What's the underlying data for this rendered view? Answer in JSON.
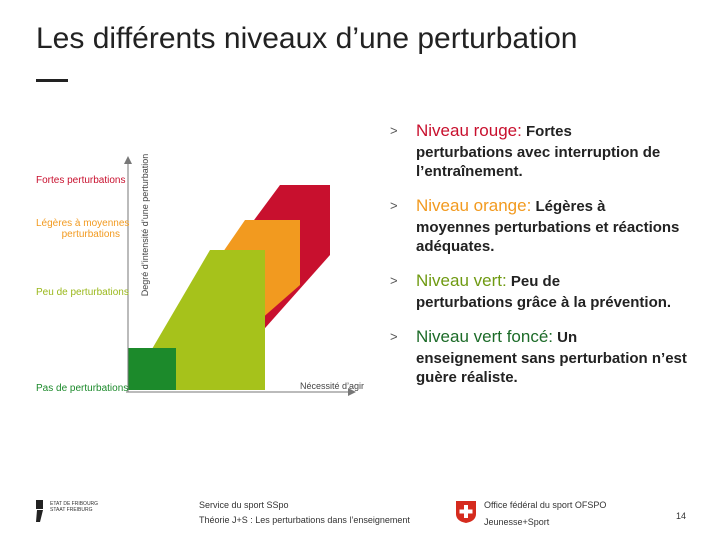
{
  "slide": {
    "title": "Les différents niveaux d’une perturbation",
    "title_dash": "—",
    "page_number": "14"
  },
  "diagram": {
    "y_axis_label": "Degré d’intensité d’une perturbation",
    "x_axis_label": "Nécessité d’agir",
    "levels": [
      {
        "label": "Fortes perturbations",
        "color": "#c8102e"
      },
      {
        "label_line1": "Légères à moyennes",
        "label_line2": "perturbations",
        "color": "#f29a1f"
      },
      {
        "label": "Peu de perturbations",
        "color": "#a6c21b"
      },
      {
        "label": "Pas de perturbations",
        "color": "#1c8a2b"
      }
    ]
  },
  "bullets": [
    {
      "arrow": ">",
      "level": "Niveau rouge:",
      "rest": " Fortes",
      "desc": "perturbations avec interruption de l’entraînement.",
      "color": "#c8102e"
    },
    {
      "arrow": ">",
      "level": "Niveau orange:",
      "rest": " Légères à",
      "desc": "moyennes perturbations et réactions adéquates.",
      "color": "#f29a1f"
    },
    {
      "arrow": ">",
      "level": "Niveau vert:",
      "rest": " Peu de",
      "desc": "perturbations grâce à la prévention.",
      "color": "#6f9a12"
    },
    {
      "arrow": ">",
      "level": "Niveau vert foncé:",
      "rest": " Un",
      "desc": "enseignement sans perturbation n’est guère réaliste.",
      "color": "#1c6b28"
    }
  ],
  "footer": {
    "canton_line1": "ETAT DE FRIBOURG",
    "canton_line2": "STAAT FREIBURG",
    "service": "Service du sport SSpo",
    "theory": "Théorie J+S : Les perturbations dans l’enseignement",
    "office": "Office fédéral du sport OFSPO",
    "program": "Jeunesse+Sport"
  }
}
